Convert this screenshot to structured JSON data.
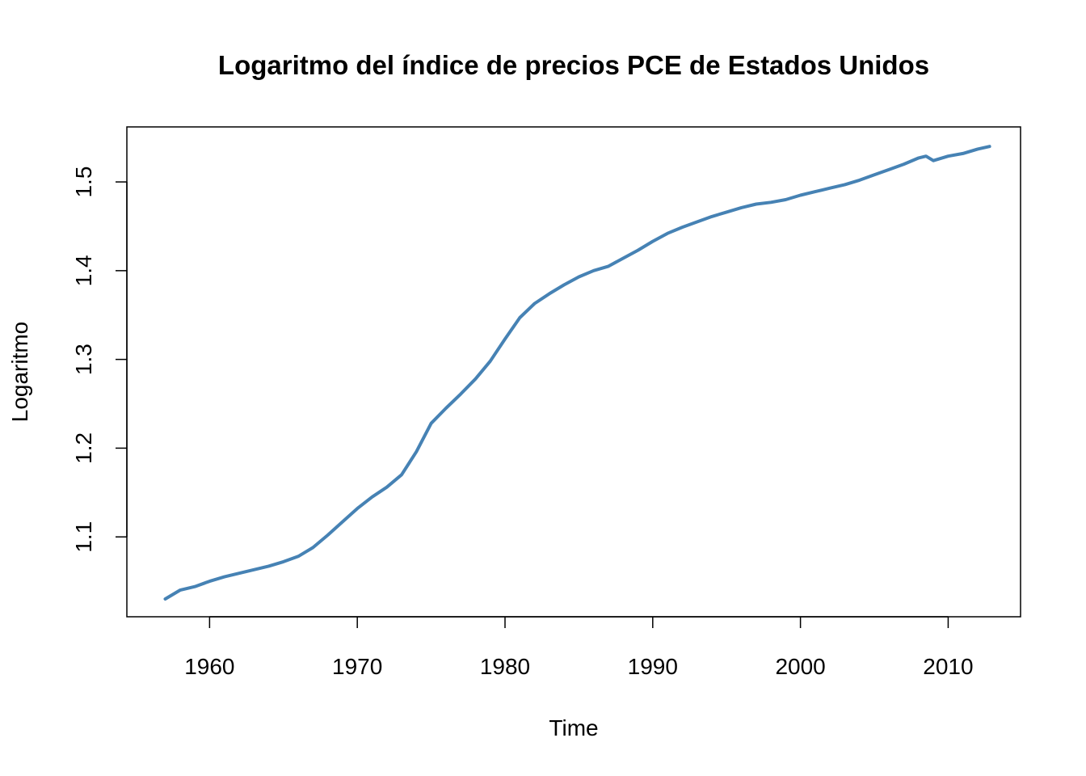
{
  "chart_data": {
    "type": "line",
    "title": "Logaritmo del índice de precios PCE de Estados Unidos",
    "xlabel": "Time",
    "ylabel": "Logaritmo",
    "xlim": [
      1954.4,
      2014.9
    ],
    "ylim": [
      1.01,
      1.562
    ],
    "xticks": [
      1960,
      1970,
      1980,
      1990,
      2000,
      2010
    ],
    "yticks": [
      1.1,
      1.2,
      1.3,
      1.4,
      1.5
    ],
    "grid": false,
    "series": [
      {
        "color": "#4682b4",
        "x": [
          1957.0,
          1958.0,
          1959.0,
          1960.0,
          1961.0,
          1962.0,
          1963.0,
          1964.0,
          1965.0,
          1966.0,
          1967.0,
          1968.0,
          1969.0,
          1970.0,
          1971.0,
          1972.0,
          1973.0,
          1974.0,
          1975.0,
          1976.0,
          1977.0,
          1978.0,
          1979.0,
          1980.0,
          1981.0,
          1982.0,
          1983.0,
          1984.0,
          1985.0,
          1986.0,
          1987.0,
          1988.0,
          1989.0,
          1990.0,
          1991.0,
          1992.0,
          1993.0,
          1994.0,
          1995.0,
          1996.0,
          1997.0,
          1998.0,
          1999.0,
          2000.0,
          2001.0,
          2002.0,
          2003.0,
          2004.0,
          2005.0,
          2006.0,
          2007.0,
          2008.0,
          2008.5,
          2009.0,
          2010.0,
          2011.0,
          2012.0,
          2012.8
        ],
        "y": [
          1.03,
          1.04,
          1.044,
          1.05,
          1.055,
          1.059,
          1.063,
          1.067,
          1.072,
          1.078,
          1.088,
          1.102,
          1.117,
          1.132,
          1.145,
          1.156,
          1.17,
          1.196,
          1.228,
          1.245,
          1.261,
          1.278,
          1.298,
          1.323,
          1.347,
          1.363,
          1.374,
          1.384,
          1.393,
          1.4,
          1.405,
          1.414,
          1.423,
          1.433,
          1.442,
          1.449,
          1.455,
          1.461,
          1.466,
          1.471,
          1.475,
          1.477,
          1.48,
          1.485,
          1.489,
          1.493,
          1.497,
          1.502,
          1.508,
          1.514,
          1.52,
          1.527,
          1.529,
          1.524,
          1.529,
          1.532,
          1.537,
          1.54
        ]
      }
    ]
  }
}
